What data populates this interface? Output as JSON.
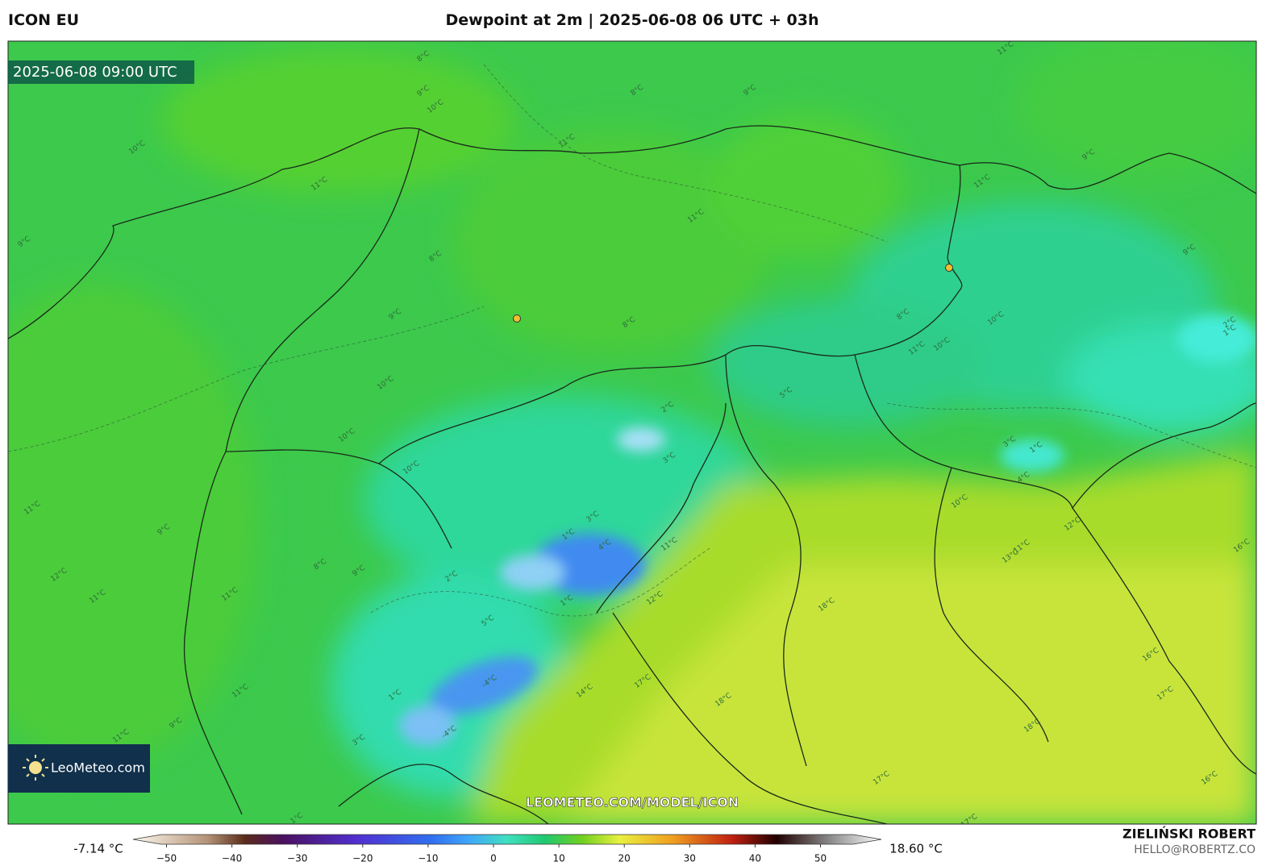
{
  "header": {
    "model": "ICON EU",
    "title": "Dewpoint at 2m | 2025-06-08 06 UTC + 03h"
  },
  "map": {
    "valid_time": "2025-06-08 09:00 UTC",
    "logo": "LeoMeteo.com",
    "watermark": "LEOMETEO.COM/MODEL/ICON",
    "contour_labels": [
      "8°C",
      "9°C",
      "10°C",
      "8°C",
      "9°C",
      "11°C",
      "10°C",
      "11°C",
      "11°C",
      "9°C",
      "11°C",
      "9°C",
      "8°C",
      "9°C",
      "8°C",
      "11°C",
      "10°C",
      "10°C",
      "10°C",
      "11°C",
      "9°C",
      "12°C",
      "8°C",
      "9°C",
      "11°C",
      "11°C",
      "2°C",
      "3°C",
      "3°C",
      "1°C",
      "2°C",
      "4°C",
      "1°C",
      "5°C",
      "-4°C",
      "-4°C",
      "3°C",
      "1°C",
      "11°C",
      "9°C",
      "11°C",
      "13°C",
      "12°C",
      "11°C",
      "16°C",
      "16°C",
      "17°C",
      "18°C",
      "16°C",
      "17°C",
      "17°C",
      "18°C",
      "17°C",
      "14°C",
      "12°C",
      "11°C",
      "18°C",
      "10°C",
      "3°C",
      "1°C",
      "-4°C",
      "2°C",
      "1°C",
      "5°C",
      "11°C",
      "10°C",
      "10°C",
      "8°C",
      "9°C",
      "1°C"
    ]
  },
  "legend": {
    "min_label": "-7.14 °C",
    "max_label": "18.60 °C",
    "ticks": [
      {
        "value": -50,
        "label": "−50"
      },
      {
        "value": -40,
        "label": "−40"
      },
      {
        "value": -30,
        "label": "−30"
      },
      {
        "value": -20,
        "label": "−20"
      },
      {
        "value": -10,
        "label": "−10"
      },
      0,
      10,
      20,
      30,
      40,
      50
    ]
  },
  "footer": {
    "author": "ZIELIŃSKI ROBERT",
    "email": "HELLO@ROBERTZ.CO"
  }
}
